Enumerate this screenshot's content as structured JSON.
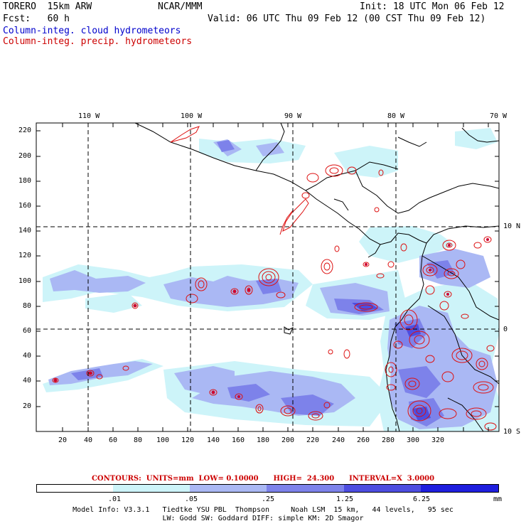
{
  "header": {
    "model": "TORERO  15km ARW",
    "center": "NCAR/MMM",
    "init": "Init: 18 UTC Mon 06 Feb 12",
    "fcst": "Fcst:   60 h",
    "valid": "Valid: 06 UTC Thu 09 Feb 12 (00 CST Thu 09 Feb 12)",
    "field1": "Column-integ. cloud hydrometeors",
    "field2": "Column-integ. precip. hydrometeors"
  },
  "axes": {
    "lon_labels": [
      "110 W",
      "100 W",
      "90 W",
      "80 W",
      "70 W"
    ],
    "lat_labels": [
      "10 N",
      "0",
      "10 S"
    ],
    "y_ticks": [
      "220",
      "200",
      "180",
      "160",
      "140",
      "120",
      "100",
      "80",
      "60",
      "40",
      "20"
    ],
    "x_ticks": [
      "20",
      "40",
      "60",
      "80",
      "100",
      "120",
      "140",
      "160",
      "180",
      "200",
      "220",
      "240",
      "260",
      "280",
      "300",
      "320"
    ]
  },
  "contours_line": "CONTOURS:  UNITS=mm  LOW= 0.10000      HIGH=  24.300      INTERVAL=X  3.0000",
  "legend": {
    "labels": [
      ".01",
      ".05",
      ".25",
      "1.25",
      "6.25"
    ],
    "unit": "mm",
    "colors": [
      "#ffffff",
      "#cdf4f9",
      "#aab8f4",
      "#7d82ea",
      "#4d4de0",
      "#1e1ede"
    ]
  },
  "footer": {
    "line1": "Model Info: V3.3.1   Tiedtke YSU PBL  Thompson     Noah LSM  15 km,   44 levels,   95 sec",
    "line2": "LW: Godd SW: Goddard DIFF: simple KM: 2D Smagor"
  },
  "colors": {
    "cloud_light": "#cdf4f9",
    "cloud_mid": "#aab8f4",
    "cloud_dark": "#7d82ea",
    "cloud_deep": "#4d4de0",
    "precip_contour": "#dd1111"
  }
}
